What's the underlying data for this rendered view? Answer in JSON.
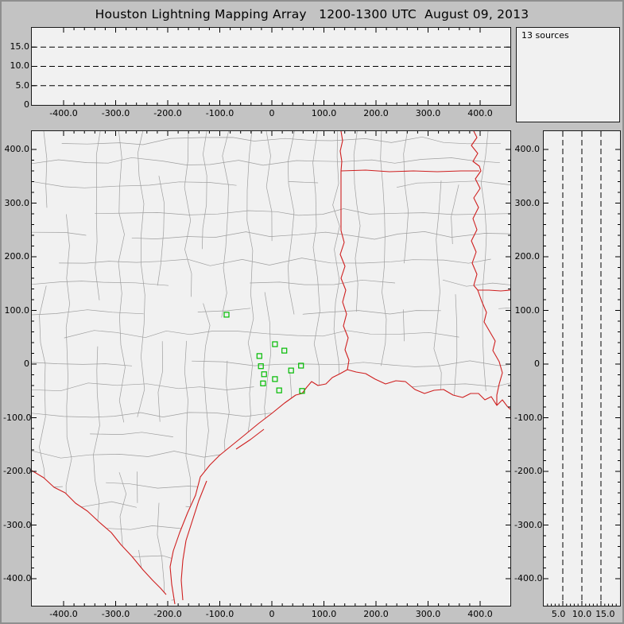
{
  "window": {
    "title": "Houston Lightning Mapping Array   1200-1300 UTC  August 09, 2013"
  },
  "panels": {
    "altitude_ew": {
      "y_tick_labels": [
        "15.0",
        "10.0",
        "5.0",
        "0"
      ],
      "x_tick_labels": [
        "-400.0",
        "-300.0",
        "-200.0",
        "-100.0",
        "0",
        "100.0",
        "200.0",
        "300.0",
        "400.0"
      ]
    },
    "sources_box": {
      "label": "13 sources"
    },
    "map": {
      "y_tick_labels": [
        "400.0",
        "300.0",
        "200.0",
        "100.0",
        "0",
        "-100.0",
        "-200.0",
        "-300.0",
        "-400.0"
      ],
      "x_tick_labels": [
        "-400.0",
        "-300.0",
        "-200.0",
        "-100.0",
        "0",
        "100.0",
        "200.0",
        "300.0",
        "400.0"
      ]
    },
    "altitude_ns": {
      "y_tick_labels": [
        "400.0",
        "300.0",
        "200.0",
        "100.0",
        "0",
        "-100.0",
        "-200.0",
        "-300.0",
        "-400.0"
      ],
      "x_tick_labels": [
        "5.0",
        "10.0",
        "15.0"
      ]
    }
  },
  "colors": {
    "window_bg": "#c3c3c3",
    "panel_bg": "#f1f1f1",
    "axis": "#000000",
    "county": "#9e9e9e",
    "state_border": "#cf1f1f",
    "station": "#00bb00"
  },
  "chart_data": {
    "type": "scatter",
    "title": "Houston Lightning Mapping Array",
    "time_window": "1200-1300 UTC",
    "date": "August 09, 2013",
    "num_sources": 13,
    "sources_label": "13 sources",
    "projection_panels": [
      {
        "name": "altitude-vs-east-west",
        "x_range_km": [
          -460,
          460
        ],
        "y_range_km": [
          0,
          20
        ],
        "y_gridlines_km": [
          5,
          10,
          15
        ],
        "x_tick_km": [
          -400,
          -300,
          -200,
          -100,
          0,
          100,
          200,
          300,
          400
        ],
        "grid_style": "dashed"
      },
      {
        "name": "plan-view-map",
        "x_range_km": [
          -460,
          458
        ],
        "y_range_km": [
          -445,
          434
        ],
        "x_tick_km": [
          -400,
          -300,
          -200,
          -100,
          0,
          100,
          200,
          300,
          400
        ],
        "y_tick_km": [
          400,
          300,
          200,
          100,
          0,
          -100,
          -200,
          -300,
          -400
        ],
        "map_layers": [
          "county-boundaries-gray",
          "state-borders-red",
          "gulf-coastline-red",
          "rivers-red",
          "barrier-islands-red"
        ]
      },
      {
        "name": "altitude-vs-north-south",
        "x_range_km": [
          0,
          20
        ],
        "x_gridlines_km": [
          5,
          10,
          15
        ],
        "x_tick_km": [
          5,
          10,
          15
        ],
        "y_range_km": [
          -445,
          434
        ],
        "grid_style": "dashed"
      }
    ],
    "station_markers_plan_km": [
      [
        -87,
        92
      ],
      [
        6,
        37
      ],
      [
        -24,
        15
      ],
      [
        24,
        25
      ],
      [
        -21,
        -4
      ],
      [
        -15,
        -19
      ],
      [
        -17,
        -36
      ],
      [
        6,
        -28
      ],
      [
        14,
        -49
      ],
      [
        37,
        -12
      ],
      [
        56,
        -3
      ],
      [
        58,
        -50
      ]
    ]
  }
}
